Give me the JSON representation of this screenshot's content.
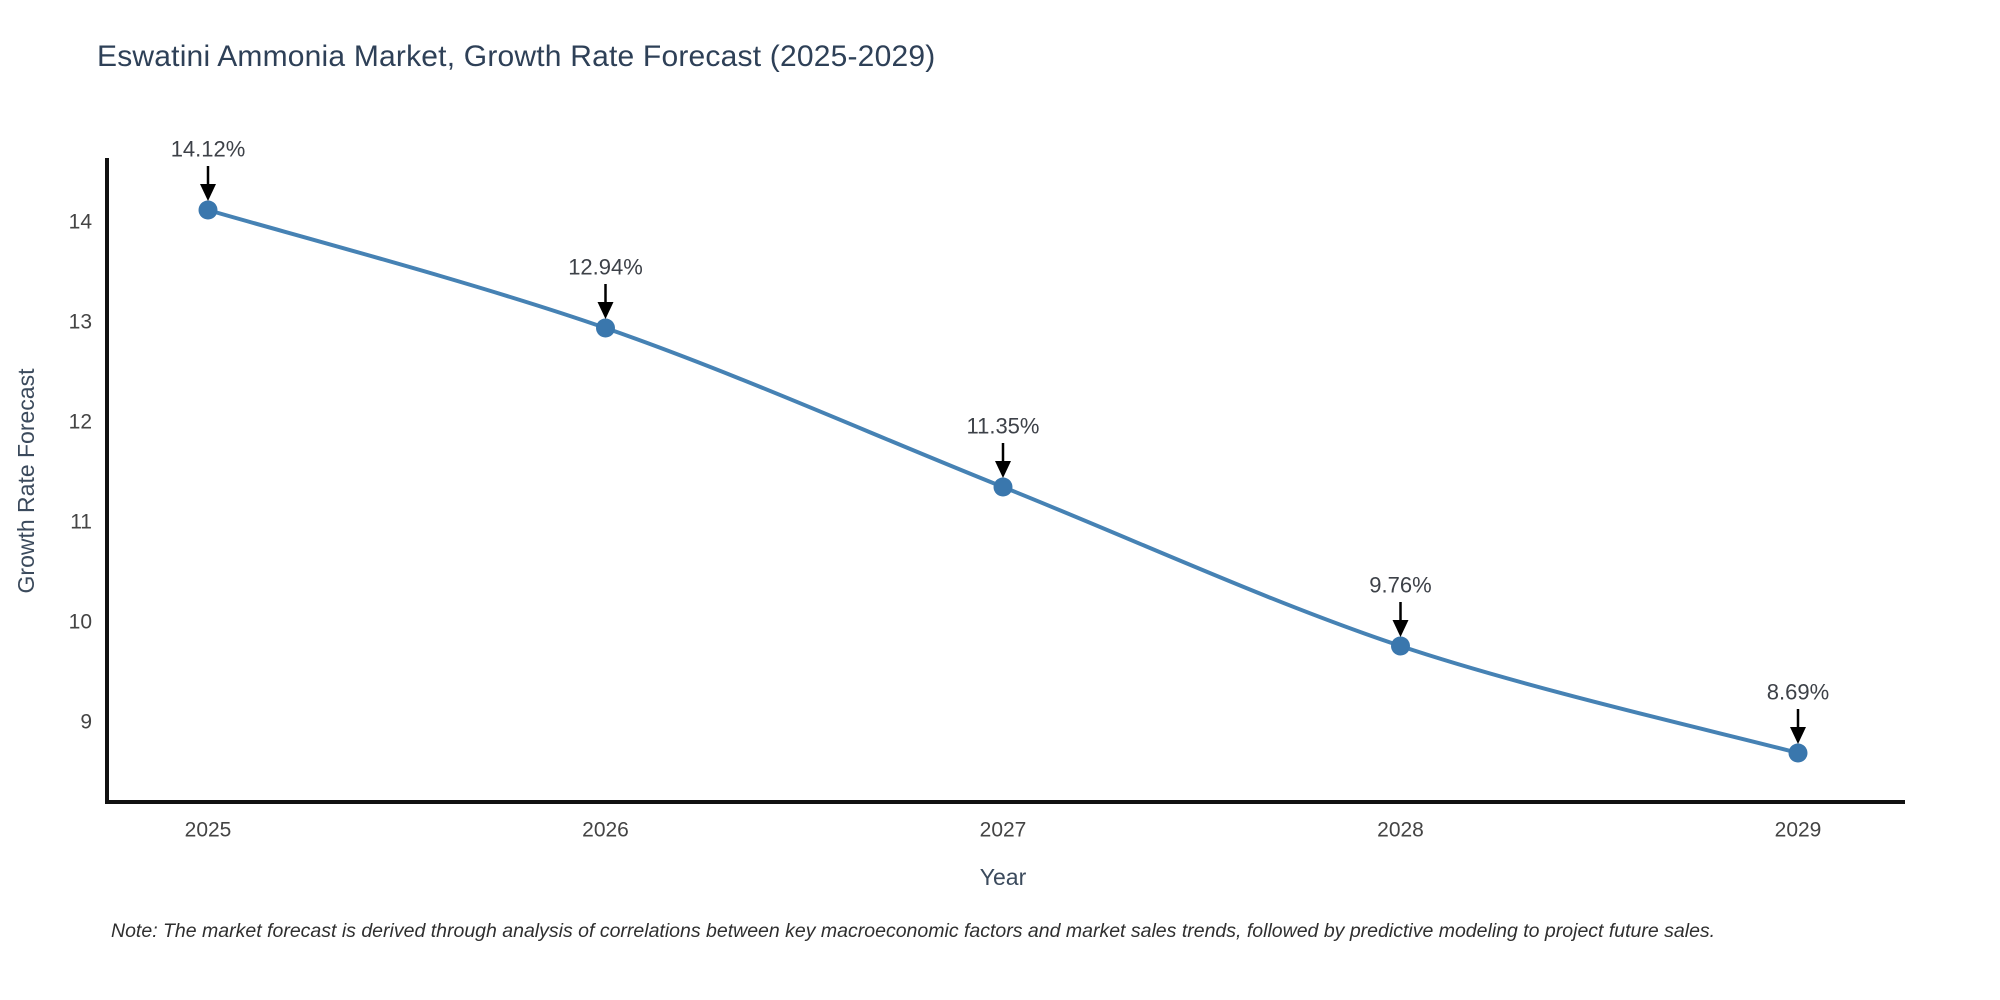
{
  "chart_data": {
    "type": "line",
    "title": "Eswatini Ammonia Market, Growth Rate Forecast (2025-2029)",
    "xlabel": "Year",
    "ylabel": "Growth Rate Forecast",
    "categories": [
      2025,
      2026,
      2027,
      2028,
      2029
    ],
    "values": [
      14.12,
      12.94,
      11.35,
      9.76,
      8.69
    ],
    "point_labels": [
      "14.12%",
      "12.94%",
      "11.35%",
      "9.76%",
      "8.69%"
    ],
    "x_tick_labels": [
      "2025",
      "2026",
      "2027",
      "2028",
      "2029"
    ],
    "y_ticks": [
      9,
      10,
      11,
      12,
      13,
      14
    ],
    "ylim": [
      8.2,
      14.65
    ],
    "grid": false,
    "legend_position": "none",
    "colors": {
      "line": "#4682b4",
      "marker": "#3a77ad",
      "axis": "#111111",
      "tick_label": "#444444",
      "title": "#2e4057",
      "axis_label": "#3b4a5c",
      "annotation_text": "#3d4148",
      "annotation_arrow": "#000000",
      "background": "#ffffff"
    }
  },
  "note": "Note: The market forecast is derived through analysis of correlations between key macroeconomic factors and market sales trends, followed by predictive modeling to project future sales."
}
